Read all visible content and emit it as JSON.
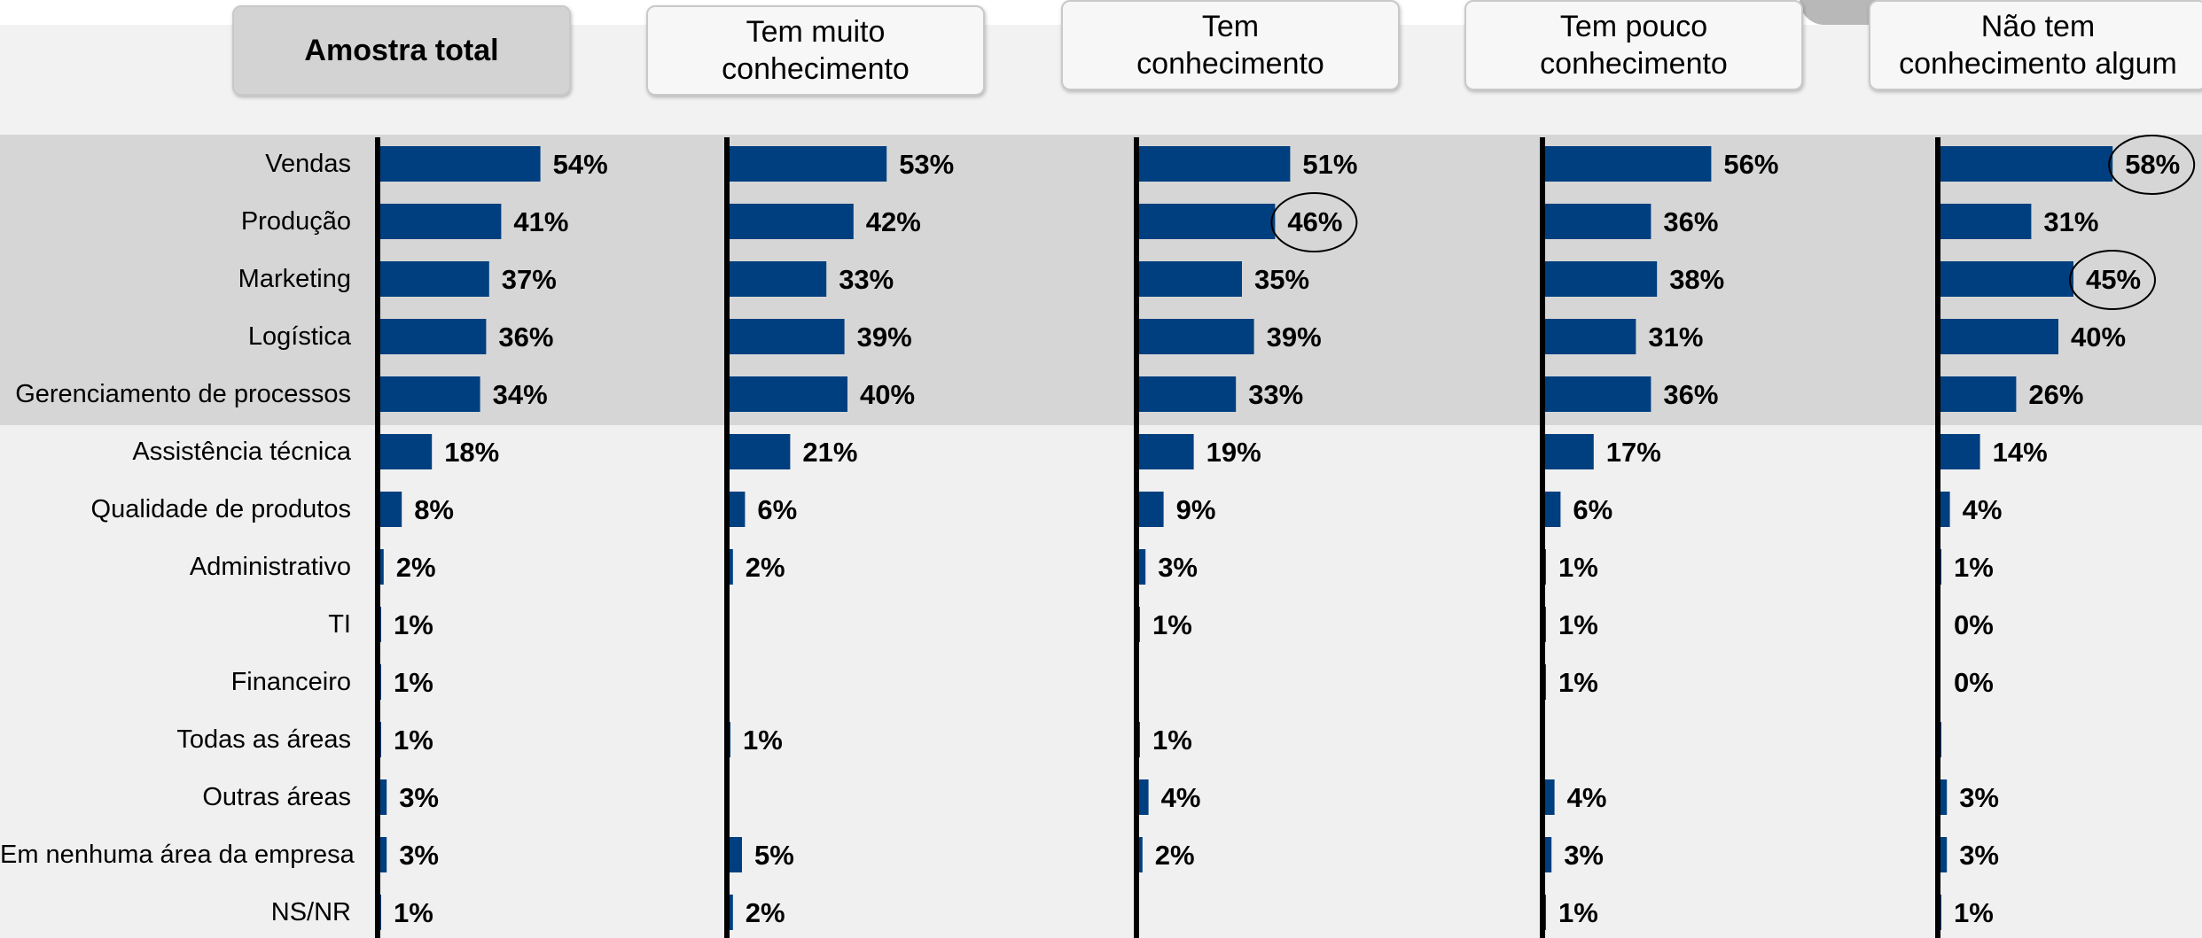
{
  "chart_data": {
    "type": "bar",
    "orientation": "horizontal",
    "categories": [
      "Vendas",
      "Produção",
      "Marketing",
      "Logística",
      "Gerenciamento de processos",
      "Assistência técnica",
      "Qualidade de produtos",
      "Administrativo",
      "TI",
      "Financeiro",
      "Todas as áreas",
      "Outras áreas",
      "Em nenhuma área da empresa",
      "NS/NR"
    ],
    "highlighted_categories": [
      "Vendas",
      "Produção",
      "Marketing",
      "Logística",
      "Gerenciamento de processos"
    ],
    "series": [
      {
        "name": "Amostra total",
        "values": [
          54,
          41,
          37,
          36,
          34,
          18,
          8,
          2,
          1,
          1,
          1,
          3,
          3,
          1
        ],
        "labels": [
          "54%",
          "41%",
          "37%",
          "36%",
          "34%",
          "18%",
          "8%",
          "2%",
          "1%",
          "1%",
          "1%",
          "3%",
          "3%",
          "1%"
        ],
        "circled": []
      },
      {
        "name": "Tem muito conhecimento",
        "values": [
          53,
          42,
          33,
          39,
          40,
          21,
          6,
          2,
          0,
          0,
          1,
          0,
          5,
          2
        ],
        "labels": [
          "53%",
          "42%",
          "33%",
          "39%",
          "40%",
          "21%",
          "6%",
          "2%",
          "",
          "",
          "1%",
          "",
          "5%",
          "2%"
        ],
        "circled": []
      },
      {
        "name": "Tem conhecimento",
        "values": [
          51,
          46,
          35,
          39,
          33,
          19,
          9,
          3,
          1,
          0,
          1,
          4,
          2,
          0
        ],
        "labels": [
          "51%",
          "46%",
          "35%",
          "39%",
          "33%",
          "19%",
          "9%",
          "3%",
          "1%",
          "",
          "1%",
          "4%",
          "2%",
          ""
        ],
        "circled": [
          1
        ]
      },
      {
        "name": "Tem pouco conhecimento",
        "values": [
          56,
          36,
          38,
          31,
          36,
          17,
          6,
          1,
          1,
          1,
          0,
          4,
          3,
          1
        ],
        "labels": [
          "56%",
          "36%",
          "38%",
          "31%",
          "36%",
          "17%",
          "6%",
          "1%",
          "1%",
          "1%",
          "",
          "4%",
          "3%",
          "1%"
        ],
        "circled": []
      },
      {
        "name": "Não tem conhecimento algum",
        "values": [
          58,
          31,
          45,
          40,
          26,
          14,
          4,
          1,
          0,
          0,
          1,
          3,
          3,
          1
        ],
        "labels": [
          "58%",
          "31%",
          "45%",
          "40%",
          "26%",
          "14%",
          "4%",
          "1%",
          "0%",
          "0%",
          "",
          "3%",
          "3%",
          "1%"
        ],
        "circled": [
          0,
          2
        ]
      }
    ],
    "unit": "%",
    "title": "",
    "xlabel": "",
    "ylabel": "",
    "grid": false,
    "legend": "none",
    "bar_color": "#003f7f",
    "axis_color": "#000000",
    "highlight_color": "#d6d6d6"
  },
  "headers": {
    "total": "Amostra total",
    "muito": [
      "Tem muito",
      "conhecimento"
    ],
    "tem": [
      "Tem",
      "conhecimento"
    ],
    "pouco": [
      "Tem pouco",
      "conhecimento"
    ],
    "nao": [
      "Não tem",
      "conhecimento algum"
    ]
  }
}
